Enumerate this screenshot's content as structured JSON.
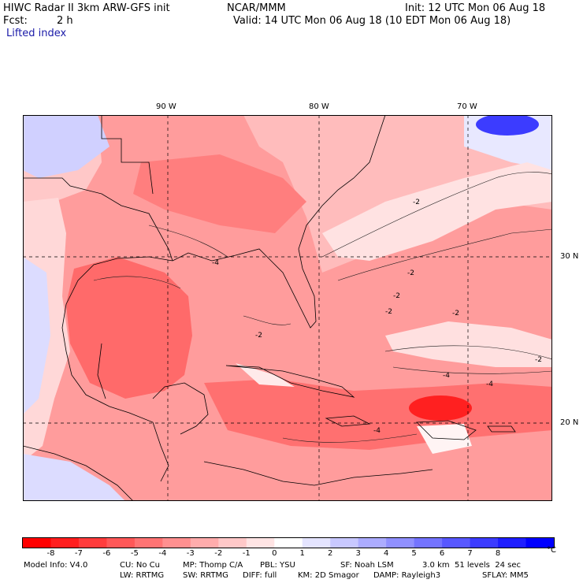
{
  "header": {
    "title": "HIWC Radar II 3km ARW-GFS init",
    "org": "NCAR/MMM",
    "init": "Init: 12 UTC Mon 06 Aug 18",
    "fcst_label": "Fcst:",
    "fcst_value": "2 h",
    "valid": "Valid: 14 UTC Mon 06 Aug 18 (10 EDT Mon 06 Aug 18)",
    "field": "Lifted index"
  },
  "map": {
    "longitude_labels": [
      "90 W",
      "80 W",
      "70 W"
    ],
    "latitude_labels": [
      "30 N",
      "20 N"
    ],
    "contour_labels": [
      "-2",
      "-2",
      "-2",
      "-2",
      "-2",
      "-2",
      "-4",
      "-4",
      "-4",
      "-4",
      "-2"
    ]
  },
  "colorbar": {
    "unit": "°C",
    "tick_labels": [
      "-8",
      "-7",
      "-6",
      "-5",
      "-4",
      "-3",
      "-2",
      "-1",
      "0",
      "1",
      "2",
      "3",
      "4",
      "5",
      "6",
      "7",
      "8"
    ],
    "colors": [
      "#ff0000",
      "#ff1e1e",
      "#ff3c3c",
      "#ff5858",
      "#ff7474",
      "#ff9090",
      "#ffacac",
      "#ffc8c8",
      "#ffe4e4",
      "#ffffff",
      "#e4e4ff",
      "#c8c8ff",
      "#acacff",
      "#9090ff",
      "#7474ff",
      "#5858ff",
      "#3c3cff",
      "#1e1eff",
      "#0000ff"
    ]
  },
  "footer": {
    "line1": [
      "Model Info: V4.0",
      "CU: No Cu",
      "MP: Thomp C/A",
      "PBL: YSU",
      "SF: Noah LSM",
      "3.0 km  51 levels  24 sec"
    ],
    "line2": [
      "LW: RRTMG",
      "SW: RRTMG",
      "DIFF: full",
      "KM: 2D Smagor",
      "DAMP: Rayleigh3",
      "SFLAY: MM5"
    ]
  }
}
